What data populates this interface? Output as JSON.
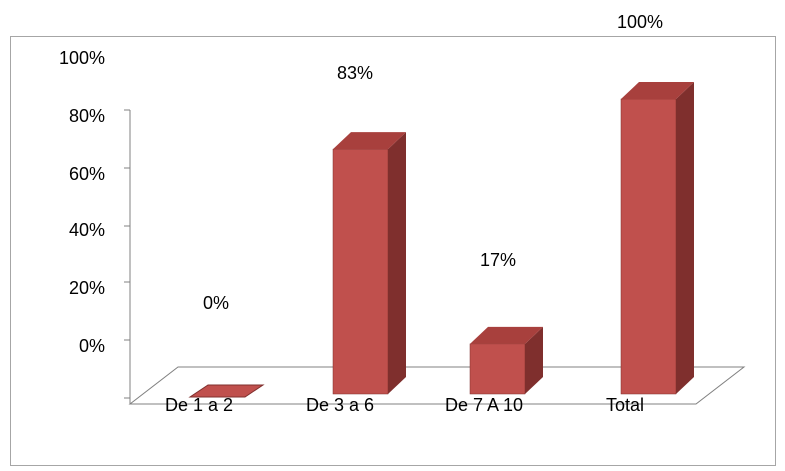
{
  "chart_data": {
    "type": "bar",
    "categories": [
      "De 1 a 2",
      "De 3 a 6",
      "De 7 A 10",
      "Total"
    ],
    "values": [
      0,
      83,
      17,
      100
    ],
    "data_labels": [
      "0%",
      "83%",
      "17%",
      "100%"
    ],
    "y_tick_labels": [
      "100%",
      "80%",
      "60%",
      "40%",
      "20%",
      "0%"
    ],
    "ylim": [
      0,
      100
    ],
    "title": "",
    "xlabel": "",
    "ylabel": "",
    "grid": false,
    "three_d": true,
    "colors": {
      "bar_front": "#c0504d",
      "bar_side": "#7f2f2d",
      "bar_top": "#a8403d",
      "axis": "#808080"
    }
  }
}
